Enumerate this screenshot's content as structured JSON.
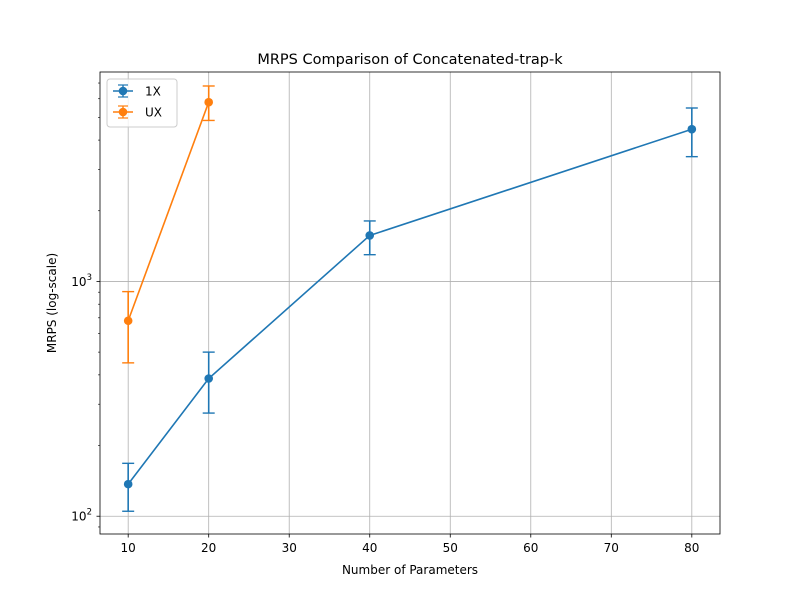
{
  "chart_data": {
    "type": "line",
    "title": "MRPS Comparison of Concatenated-trap-k",
    "xlabel": "Number of Parameters",
    "ylabel": "MRPS (log-scale)",
    "y_scale": "log",
    "xlim": [
      6.5,
      83.5
    ],
    "ylim": [
      84,
      7800
    ],
    "grid": true,
    "legend_position": "upper-left",
    "x_ticks": [
      10,
      20,
      30,
      40,
      50,
      60,
      70,
      80
    ],
    "y_major_ticks": [
      {
        "value": 100,
        "base": "10",
        "exp": "2"
      },
      {
        "value": 1000,
        "base": "10",
        "exp": "3"
      }
    ],
    "series": [
      {
        "name": "1X",
        "color": "#1f77b4",
        "marker": "circle",
        "x": [
          10,
          20,
          40,
          80
        ],
        "y": [
          137,
          386,
          1570,
          4450
        ],
        "yerr_low": [
          105,
          275,
          1300,
          3400
        ],
        "yerr_high": [
          168,
          500,
          1810,
          5480
        ]
      },
      {
        "name": "UX",
        "color": "#ff7f0e",
        "marker": "circle",
        "x": [
          10,
          20
        ],
        "y": [
          680,
          5800
        ],
        "yerr_low": [
          450,
          4850
        ],
        "yerr_high": [
          905,
          6800
        ]
      }
    ]
  }
}
